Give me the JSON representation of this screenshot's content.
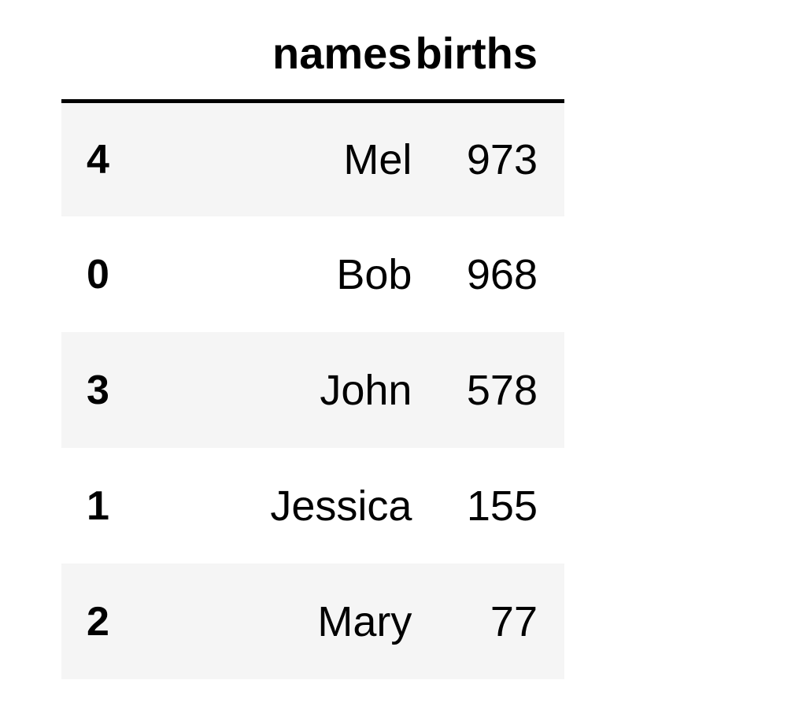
{
  "table": {
    "headers": {
      "index": "",
      "names": "names",
      "births": "births"
    },
    "rows": [
      {
        "index": "4",
        "names": "Mel",
        "births": "973"
      },
      {
        "index": "0",
        "names": "Bob",
        "births": "968"
      },
      {
        "index": "3",
        "names": "John",
        "births": "578"
      },
      {
        "index": "1",
        "names": "Jessica",
        "births": "155"
      },
      {
        "index": "2",
        "names": "Mary",
        "births": "77"
      }
    ]
  },
  "colors": {
    "striped_row": "#f5f5f5",
    "plain_row": "#ffffff",
    "header_rule": "#000000"
  }
}
